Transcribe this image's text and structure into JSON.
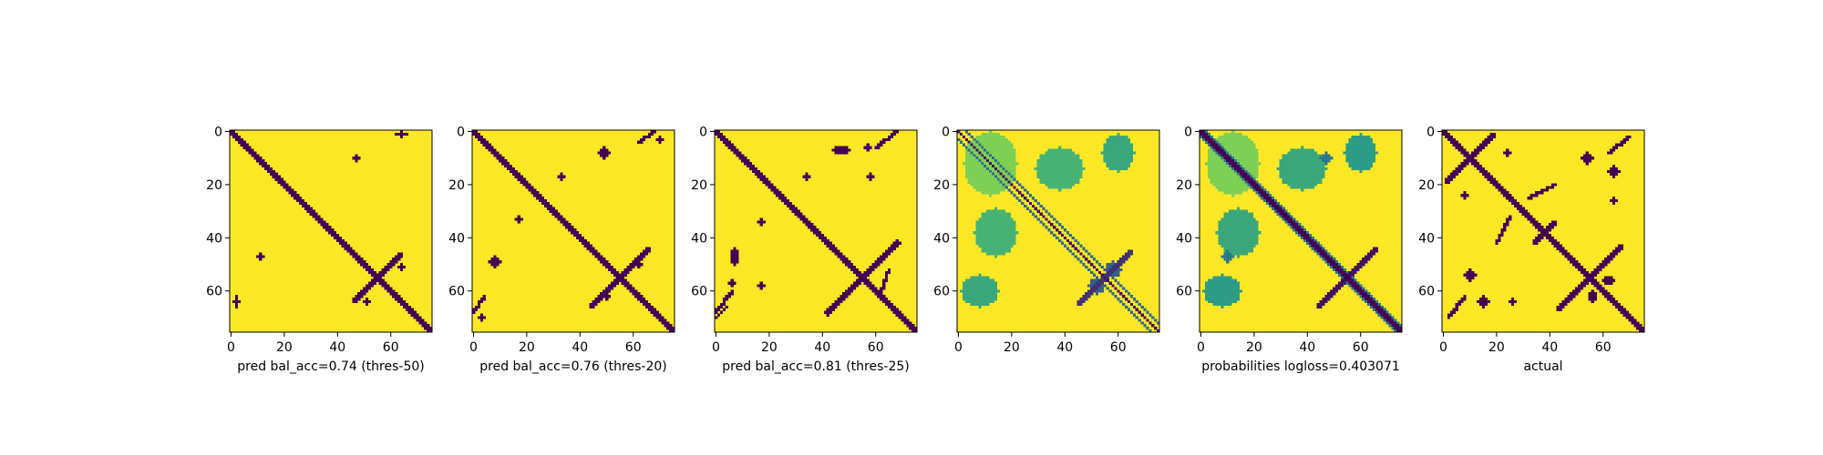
{
  "colors": {
    "background": "#fde725",
    "foreground": "#440154",
    "colormap": [
      "#440154",
      "#3b528b",
      "#21918c",
      "#5ec962",
      "#fde725"
    ]
  },
  "chart_data": [
    {
      "type": "heatmap",
      "title": "",
      "xlabel": "pred bal_acc=0.74 (thres-50)",
      "ylabel": "",
      "xticks": [
        0,
        20,
        40,
        60
      ],
      "yticks": [
        0,
        20,
        40,
        60
      ],
      "xlim": [
        0,
        76
      ],
      "ylim": [
        76,
        0
      ],
      "matrix_size": 76,
      "value_kind": "binary",
      "features": [
        {
          "shape": "diagonal",
          "offset": 0,
          "width": 2.2,
          "start": 0,
          "end": 76,
          "value": 1
        },
        {
          "shape": "antidiagonal",
          "center": [
            55,
            55
          ],
          "length": 9,
          "width": 1.6,
          "value": 1
        },
        {
          "shape": "blob",
          "cx": 64,
          "cy": 1,
          "rx": 2,
          "ry": 1,
          "value": 1
        },
        {
          "shape": "blob",
          "cx": 47,
          "cy": 10,
          "rx": 1,
          "ry": 1,
          "value": 1
        },
        {
          "shape": "blob",
          "cx": 11,
          "cy": 47,
          "rx": 1,
          "ry": 1,
          "value": 1
        },
        {
          "shape": "blob",
          "cx": 2,
          "cy": 64,
          "rx": 1,
          "ry": 2,
          "value": 1
        },
        {
          "shape": "blob",
          "cx": 64,
          "cy": 51,
          "rx": 1,
          "ry": 1,
          "value": 1
        },
        {
          "shape": "blob",
          "cx": 51,
          "cy": 64,
          "rx": 1,
          "ry": 1,
          "value": 1
        }
      ]
    },
    {
      "type": "heatmap",
      "title": "",
      "xlabel": "pred bal_acc=0.76 (thres-20)",
      "ylabel": "",
      "xticks": [
        0,
        20,
        40,
        60
      ],
      "yticks": [
        0,
        20,
        40,
        60
      ],
      "xlim": [
        0,
        76
      ],
      "ylim": [
        76,
        0
      ],
      "matrix_size": 76,
      "value_kind": "binary",
      "features": [
        {
          "shape": "diagonal",
          "offset": 0,
          "width": 2.4,
          "start": 0,
          "end": 76,
          "value": 1
        },
        {
          "shape": "antidiagonal",
          "center": [
            55,
            55
          ],
          "length": 11,
          "width": 1.8,
          "value": 1
        },
        {
          "shape": "line",
          "from": [
            62,
            4
          ],
          "to": [
            68,
            0
          ],
          "width": 1.2,
          "value": 1
        },
        {
          "shape": "line",
          "from": [
            4,
            62
          ],
          "to": [
            0,
            68
          ],
          "width": 1.2,
          "value": 1
        },
        {
          "shape": "blob",
          "cx": 49,
          "cy": 8,
          "rx": 2,
          "ry": 2,
          "value": 1
        },
        {
          "shape": "blob",
          "cx": 8,
          "cy": 49,
          "rx": 2,
          "ry": 2,
          "value": 1
        },
        {
          "shape": "blob",
          "cx": 70,
          "cy": 3,
          "rx": 1,
          "ry": 1,
          "value": 1
        },
        {
          "shape": "blob",
          "cx": 3,
          "cy": 70,
          "rx": 1,
          "ry": 1,
          "value": 1
        },
        {
          "shape": "blob",
          "cx": 33,
          "cy": 17,
          "rx": 1,
          "ry": 1,
          "value": 1
        },
        {
          "shape": "blob",
          "cx": 17,
          "cy": 33,
          "rx": 1,
          "ry": 1,
          "value": 1
        },
        {
          "shape": "blob",
          "cx": 62,
          "cy": 50,
          "rx": 1,
          "ry": 1,
          "value": 1
        },
        {
          "shape": "blob",
          "cx": 50,
          "cy": 62,
          "rx": 1,
          "ry": 1,
          "value": 1
        }
      ]
    },
    {
      "type": "heatmap",
      "title": "",
      "xlabel": "pred bal_acc=0.81 (thres-25)",
      "ylabel": "",
      "xticks": [
        0,
        20,
        40,
        60
      ],
      "yticks": [
        0,
        20,
        40,
        60
      ],
      "xlim": [
        0,
        76
      ],
      "ylim": [
        76,
        0
      ],
      "matrix_size": 76,
      "value_kind": "binary",
      "features": [
        {
          "shape": "diagonal",
          "offset": 0,
          "width": 2.6,
          "start": 0,
          "end": 76,
          "value": 1
        },
        {
          "shape": "antidiagonal",
          "center": [
            55,
            55
          ],
          "length": 13,
          "width": 2.0,
          "value": 1
        },
        {
          "shape": "line",
          "from": [
            60,
            6
          ],
          "to": [
            68,
            0
          ],
          "width": 1.4,
          "value": 1
        },
        {
          "shape": "line",
          "from": [
            6,
            60
          ],
          "to": [
            0,
            68
          ],
          "width": 1.4,
          "value": 1
        },
        {
          "shape": "blob",
          "cx": 47,
          "cy": 7,
          "rx": 3,
          "ry": 1.5,
          "value": 1
        },
        {
          "shape": "blob",
          "cx": 7,
          "cy": 47,
          "rx": 1.5,
          "ry": 3,
          "value": 1
        },
        {
          "shape": "blob",
          "cx": 34,
          "cy": 17,
          "rx": 1,
          "ry": 1.5,
          "value": 1
        },
        {
          "shape": "blob",
          "cx": 17,
          "cy": 34,
          "rx": 1.5,
          "ry": 1,
          "value": 1
        },
        {
          "shape": "blob",
          "cx": 57,
          "cy": 6,
          "rx": 1.5,
          "ry": 1,
          "value": 1
        },
        {
          "shape": "blob",
          "cx": 6,
          "cy": 57,
          "rx": 1,
          "ry": 1.5,
          "value": 1
        },
        {
          "shape": "blob",
          "cx": 58,
          "cy": 17,
          "rx": 1,
          "ry": 1,
          "value": 1
        },
        {
          "shape": "blob",
          "cx": 17,
          "cy": 58,
          "rx": 1,
          "ry": 1,
          "value": 1
        },
        {
          "shape": "line",
          "from": [
            0,
            70
          ],
          "to": [
            4,
            66
          ],
          "width": 1.2,
          "value": 1
        },
        {
          "shape": "line",
          "from": [
            65,
            52
          ],
          "to": [
            62,
            60
          ],
          "width": 1.2,
          "value": 1
        }
      ]
    },
    {
      "type": "heatmap",
      "title": "",
      "xlabel": "",
      "ylabel": "",
      "xticks": [
        0,
        20,
        40,
        60
      ],
      "yticks": [
        0,
        20,
        40,
        60
      ],
      "xlim": [
        0,
        76
      ],
      "ylim": [
        76,
        0
      ],
      "matrix_size": 76,
      "value_kind": "continuous",
      "features": [
        {
          "shape": "diagonal",
          "offset": 0,
          "width": 0.6,
          "start": 0,
          "end": 76,
          "value": 0.05
        },
        {
          "shape": "diagonal",
          "offset": 3,
          "width": 0.7,
          "start": 0,
          "end": 76,
          "value": 0.35
        },
        {
          "shape": "diagonal",
          "offset": -3,
          "width": 0.7,
          "start": 0,
          "end": 76,
          "value": 0.35
        },
        {
          "shape": "blob",
          "cx": 12,
          "cy": 12,
          "rx": 10,
          "ry": 12,
          "value": 0.8
        },
        {
          "shape": "blob",
          "cx": 38,
          "cy": 14,
          "rx": 9,
          "ry": 8,
          "value": 0.65
        },
        {
          "shape": "blob",
          "cx": 14,
          "cy": 38,
          "rx": 8,
          "ry": 9,
          "value": 0.65
        },
        {
          "shape": "blob",
          "cx": 60,
          "cy": 8,
          "rx": 6,
          "ry": 7,
          "value": 0.6
        },
        {
          "shape": "blob",
          "cx": 8,
          "cy": 60,
          "rx": 7,
          "ry": 6,
          "value": 0.6
        },
        {
          "shape": "antidiagonal",
          "center": [
            55,
            55
          ],
          "length": 10,
          "width": 1.6,
          "value": 0.15
        },
        {
          "shape": "blob",
          "cx": 58,
          "cy": 52,
          "rx": 3,
          "ry": 3,
          "value": 0.3
        },
        {
          "shape": "blob",
          "cx": 52,
          "cy": 58,
          "rx": 3,
          "ry": 3,
          "value": 0.3
        }
      ]
    },
    {
      "type": "heatmap",
      "title": "",
      "xlabel": "probabilities logloss=0.403071",
      "ylabel": "",
      "xticks": [
        0,
        20,
        40,
        60
      ],
      "yticks": [
        0,
        20,
        40,
        60
      ],
      "xlim": [
        0,
        76
      ],
      "ylim": [
        76,
        0
      ],
      "matrix_size": 76,
      "value_kind": "continuous",
      "features": [
        {
          "shape": "diagonal",
          "offset": 0,
          "width": 2.6,
          "start": 0,
          "end": 76,
          "value": 0.0
        },
        {
          "shape": "diagonal",
          "offset": 0,
          "width": 4.0,
          "start": 0,
          "end": 76,
          "value": 0.4
        },
        {
          "shape": "blob",
          "cx": 12,
          "cy": 12,
          "rx": 10,
          "ry": 12,
          "value": 0.8
        },
        {
          "shape": "blob",
          "cx": 38,
          "cy": 14,
          "rx": 9,
          "ry": 8,
          "value": 0.6
        },
        {
          "shape": "blob",
          "cx": 14,
          "cy": 38,
          "rx": 8,
          "ry": 9,
          "value": 0.6
        },
        {
          "shape": "blob",
          "cx": 60,
          "cy": 8,
          "rx": 6,
          "ry": 7,
          "value": 0.55
        },
        {
          "shape": "blob",
          "cx": 8,
          "cy": 60,
          "rx": 7,
          "ry": 6,
          "value": 0.55
        },
        {
          "shape": "antidiagonal",
          "center": [
            55,
            55
          ],
          "length": 11,
          "width": 1.8,
          "value": 0.05
        },
        {
          "shape": "blob",
          "cx": 47,
          "cy": 10,
          "rx": 2,
          "ry": 2,
          "value": 0.4
        },
        {
          "shape": "blob",
          "cx": 10,
          "cy": 47,
          "rx": 2,
          "ry": 2,
          "value": 0.4
        }
      ]
    },
    {
      "type": "heatmap",
      "title": "",
      "xlabel": "actual",
      "ylabel": "",
      "xticks": [
        0,
        20,
        40,
        60
      ],
      "yticks": [
        0,
        20,
        40,
        60
      ],
      "xlim": [
        0,
        76
      ],
      "ylim": [
        76,
        0
      ],
      "matrix_size": 76,
      "value_kind": "binary",
      "features": [
        {
          "shape": "diagonal",
          "offset": 0,
          "width": 2.6,
          "start": 0,
          "end": 76,
          "value": 1
        },
        {
          "shape": "antidiagonal",
          "center": [
            10,
            10
          ],
          "length": 9,
          "width": 1.8,
          "value": 1
        },
        {
          "shape": "antidiagonal",
          "center": [
            38,
            38
          ],
          "length": 4,
          "width": 1.5,
          "value": 1
        },
        {
          "shape": "antidiagonal",
          "center": [
            55,
            55
          ],
          "length": 12,
          "width": 1.8,
          "value": 1
        },
        {
          "shape": "line",
          "from": [
            32,
            25
          ],
          "to": [
            42,
            20
          ],
          "width": 1.3,
          "value": 1
        },
        {
          "shape": "line",
          "from": [
            25,
            32
          ],
          "to": [
            20,
            42
          ],
          "width": 1.3,
          "value": 1
        },
        {
          "shape": "line",
          "from": [
            62,
            8
          ],
          "to": [
            70,
            2
          ],
          "width": 1.3,
          "value": 1
        },
        {
          "shape": "line",
          "from": [
            8,
            62
          ],
          "to": [
            2,
            70
          ],
          "width": 1.3,
          "value": 1
        },
        {
          "shape": "blob",
          "cx": 54,
          "cy": 10,
          "rx": 2,
          "ry": 2,
          "value": 1
        },
        {
          "shape": "blob",
          "cx": 10,
          "cy": 54,
          "rx": 2,
          "ry": 2,
          "value": 1
        },
        {
          "shape": "blob",
          "cx": 64,
          "cy": 15,
          "rx": 2,
          "ry": 2,
          "value": 1
        },
        {
          "shape": "blob",
          "cx": 15,
          "cy": 64,
          "rx": 2,
          "ry": 2,
          "value": 1
        },
        {
          "shape": "blob",
          "cx": 24,
          "cy": 8,
          "rx": 1.5,
          "ry": 1,
          "value": 1
        },
        {
          "shape": "blob",
          "cx": 8,
          "cy": 24,
          "rx": 1,
          "ry": 1.5,
          "value": 1
        },
        {
          "shape": "blob",
          "cx": 26,
          "cy": 64,
          "rx": 1,
          "ry": 1,
          "value": 1
        },
        {
          "shape": "blob",
          "cx": 64,
          "cy": 26,
          "rx": 1,
          "ry": 1,
          "value": 1
        },
        {
          "shape": "blob",
          "cx": 62,
          "cy": 56,
          "rx": 2,
          "ry": 1.5,
          "value": 1
        },
        {
          "shape": "blob",
          "cx": 56,
          "cy": 62,
          "rx": 1.5,
          "ry": 2,
          "value": 1
        }
      ]
    }
  ]
}
